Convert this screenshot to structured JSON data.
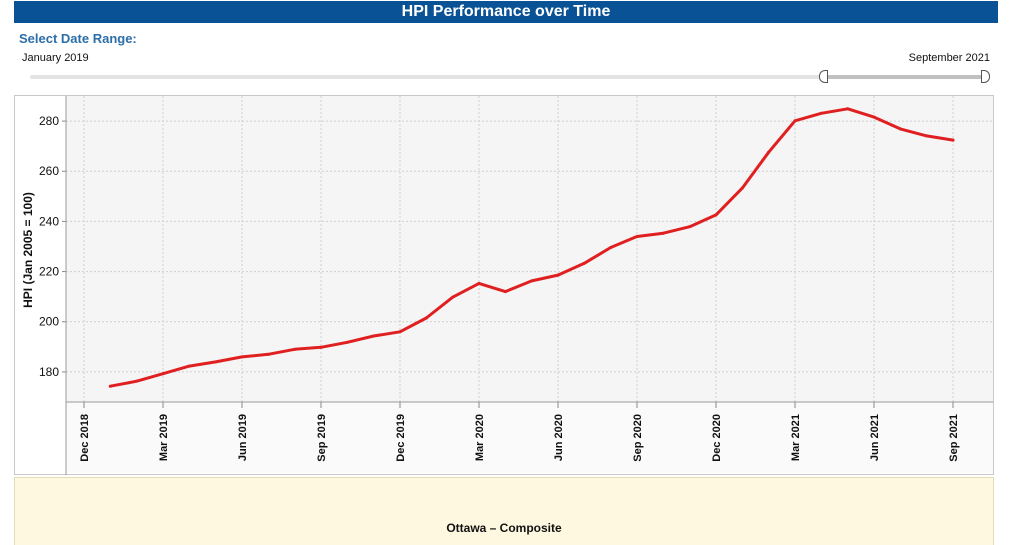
{
  "header": {
    "title": "HPI Performance over Time"
  },
  "range": {
    "heading": "Select Date Range:",
    "start_label": "January 2019",
    "end_label": "September 2021"
  },
  "footer": {
    "series_label": "Ottawa – Composite"
  },
  "colors": {
    "title_bar": "#0a5296",
    "line": "#e02020",
    "plot_bg": "#f5f5f5",
    "footer_bg": "#fff8e1"
  },
  "chart_data": {
    "type": "line",
    "title": "HPI Performance over Time",
    "ylabel": "HPI (Jan 2005 = 100)",
    "xlabel": "",
    "ylim": [
      168,
      290
    ],
    "yticks": [
      180,
      200,
      220,
      240,
      260,
      280
    ],
    "grid": true,
    "x_ticks": [
      "Dec 2018",
      "Mar 2019",
      "Jun 2019",
      "Sep 2019",
      "Dec 2019",
      "Mar 2020",
      "Jun 2020",
      "Sep 2020",
      "Dec 2020",
      "Mar 2021",
      "Jun 2021",
      "Sep 2021"
    ],
    "series": [
      {
        "color": "#e02020",
        "x": [
          "Jan 2019",
          "Feb 2019",
          "Mar 2019",
          "Apr 2019",
          "May 2019",
          "Jun 2019",
          "Jul 2019",
          "Aug 2019",
          "Sep 2019",
          "Oct 2019",
          "Nov 2019",
          "Dec 2019",
          "Jan 2020",
          "Feb 2020",
          "Mar 2020",
          "Apr 2020",
          "May 2020",
          "Jun 2020",
          "Jul 2020",
          "Aug 2020",
          "Sep 2020",
          "Oct 2020",
          "Nov 2020",
          "Dec 2020",
          "Jan 2021",
          "Feb 2021",
          "Mar 2021",
          "Apr 2021",
          "May 2021",
          "Jun 2021",
          "Jul 2021",
          "Aug 2021",
          "Sep 2021"
        ],
        "values": [
          174.3,
          176.3,
          179.3,
          182.3,
          184.0,
          186.0,
          187.0,
          189.0,
          189.8,
          191.8,
          194.3,
          196.0,
          201.5,
          209.8,
          215.3,
          212.0,
          216.3,
          218.6,
          223.3,
          229.6,
          234.0,
          235.3,
          237.9,
          242.6,
          253.3,
          267.6,
          280.1,
          283.1,
          284.9,
          281.6,
          276.9,
          274.1,
          272.4
        ]
      }
    ]
  }
}
